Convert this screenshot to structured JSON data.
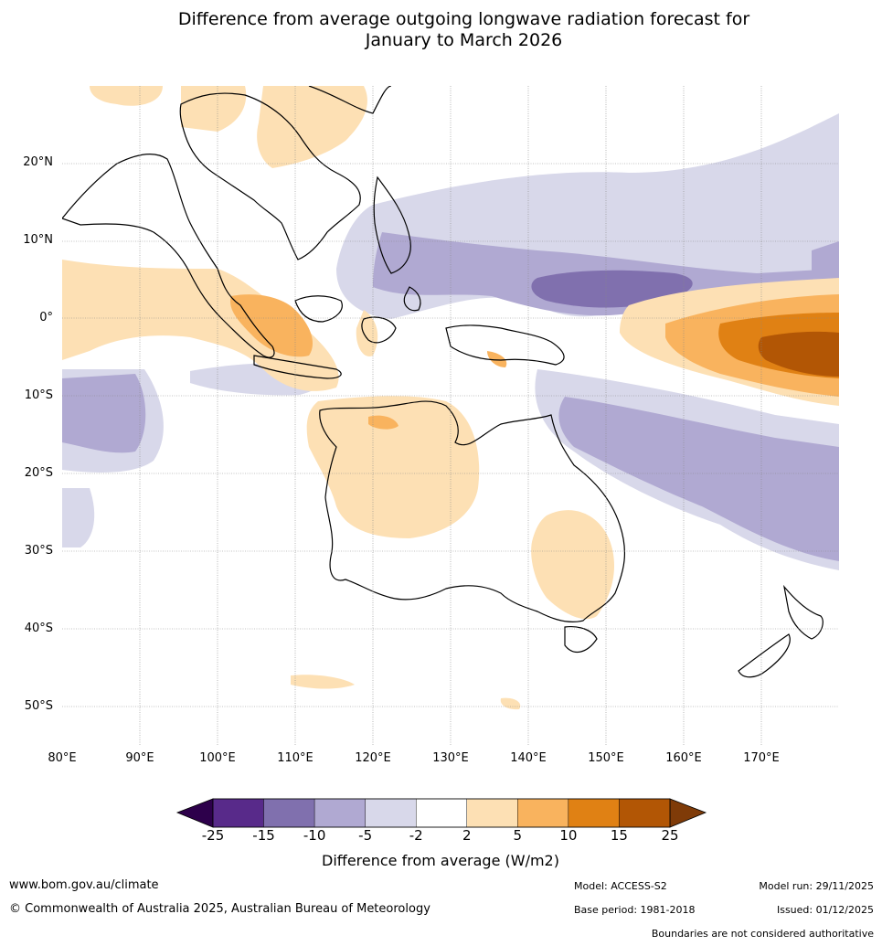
{
  "title_line1": "Difference from average outgoing longwave radiation forecast for",
  "title_line2": "January to March 2026",
  "lat_labels": [
    "20°N",
    "10°N",
    "0°",
    "10°S",
    "20°S",
    "30°S",
    "40°S",
    "50°S"
  ],
  "lon_labels": [
    "80°E",
    "90°E",
    "100°E",
    "110°E",
    "120°E",
    "130°E",
    "140°E",
    "150°E",
    "160°E",
    "170°E"
  ],
  "colorbar": {
    "ticks": [
      "-25",
      "-15",
      "-10",
      "-5",
      "-2",
      "2",
      "5",
      "10",
      "15",
      "25"
    ],
    "colors": [
      "#582a8a",
      "#8070ae",
      "#b0a9d2",
      "#d8d8ea",
      "#ffffff",
      "#fde0b4",
      "#f9b35e",
      "#e08114",
      "#b25605"
    ],
    "under_color": "#2d004b",
    "over_color": "#7f3b08",
    "title": "Difference from average (W/m2)"
  },
  "footer": {
    "website": "www.bom.gov.au/climate",
    "copyright": "© Commonwealth of Australia 2025, Australian Bureau of Meteorology",
    "model": "Model: ACCESS-S2",
    "model_run": "Model run: 29/11/2025",
    "base_period": "Base period: 1981-2018",
    "issued": "Issued: 01/12/2025",
    "disclaimer": "Boundaries are not considered authoritative"
  }
}
